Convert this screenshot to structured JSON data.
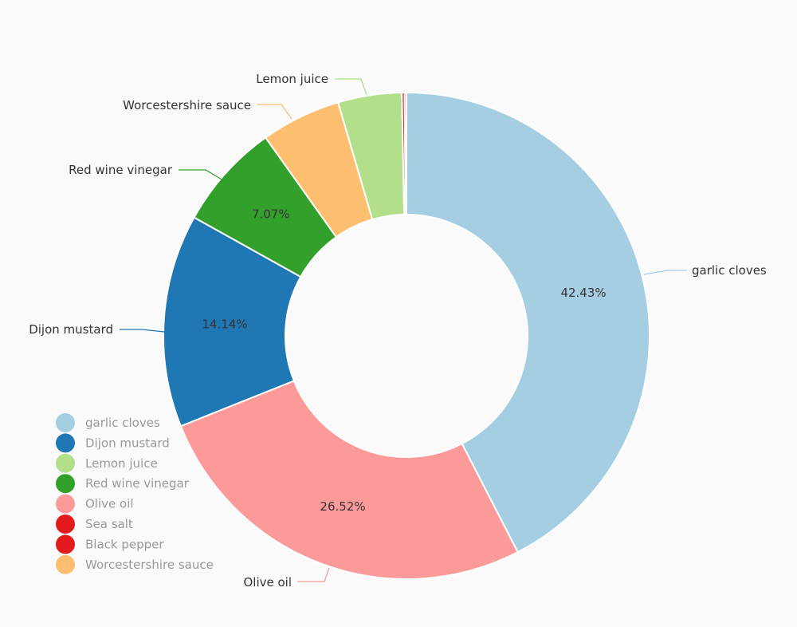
{
  "chart_data": {
    "type": "pie",
    "donut": true,
    "slices": [
      {
        "label": "garlic cloves",
        "value": 42.43,
        "color": "#a6cee3",
        "pct_label": "42.43%",
        "callout": "garlic cloves"
      },
      {
        "label": "Olive oil",
        "value": 26.52,
        "color": "#fb9a99",
        "pct_label": "26.52%",
        "callout": "Olive oil"
      },
      {
        "label": "Dijon mustard",
        "value": 14.14,
        "color": "#1f78b4",
        "pct_label": "14.14%",
        "callout": "Dijon mustard"
      },
      {
        "label": "Red wine vinegar",
        "value": 7.07,
        "color": "#33a02c",
        "pct_label": "7.07%",
        "callout": "Red wine vinegar"
      },
      {
        "label": "Worcestershire sauce",
        "value": 5.3,
        "color": "#fdbf6f",
        "pct_label": "",
        "callout": "Worcestershire sauce"
      },
      {
        "label": "Lemon juice",
        "value": 4.24,
        "color": "#b2df8a",
        "pct_label": "",
        "callout": "Lemon juice"
      },
      {
        "label": "Black pepper",
        "value": 0.18,
        "color": "#e31a1c",
        "pct_label": "",
        "callout": ""
      },
      {
        "label": "Sea salt",
        "value": 0.12,
        "color": "#e31a1c",
        "pct_label": "",
        "callout": ""
      }
    ],
    "legend": {
      "placement": "bottom-left",
      "items": [
        {
          "label": "garlic cloves",
          "color": "#a6cee3"
        },
        {
          "label": "Dijon mustard",
          "color": "#1f78b4"
        },
        {
          "label": "Lemon juice",
          "color": "#b2df8a"
        },
        {
          "label": "Red wine vinegar",
          "color": "#33a02c"
        },
        {
          "label": "Olive oil",
          "color": "#fb9a99"
        },
        {
          "label": "Sea salt",
          "color": "#e31a1c"
        },
        {
          "label": "Black pepper",
          "color": "#e31a1c"
        },
        {
          "label": "Worcestershire sauce",
          "color": "#fdbf6f"
        }
      ]
    }
  }
}
